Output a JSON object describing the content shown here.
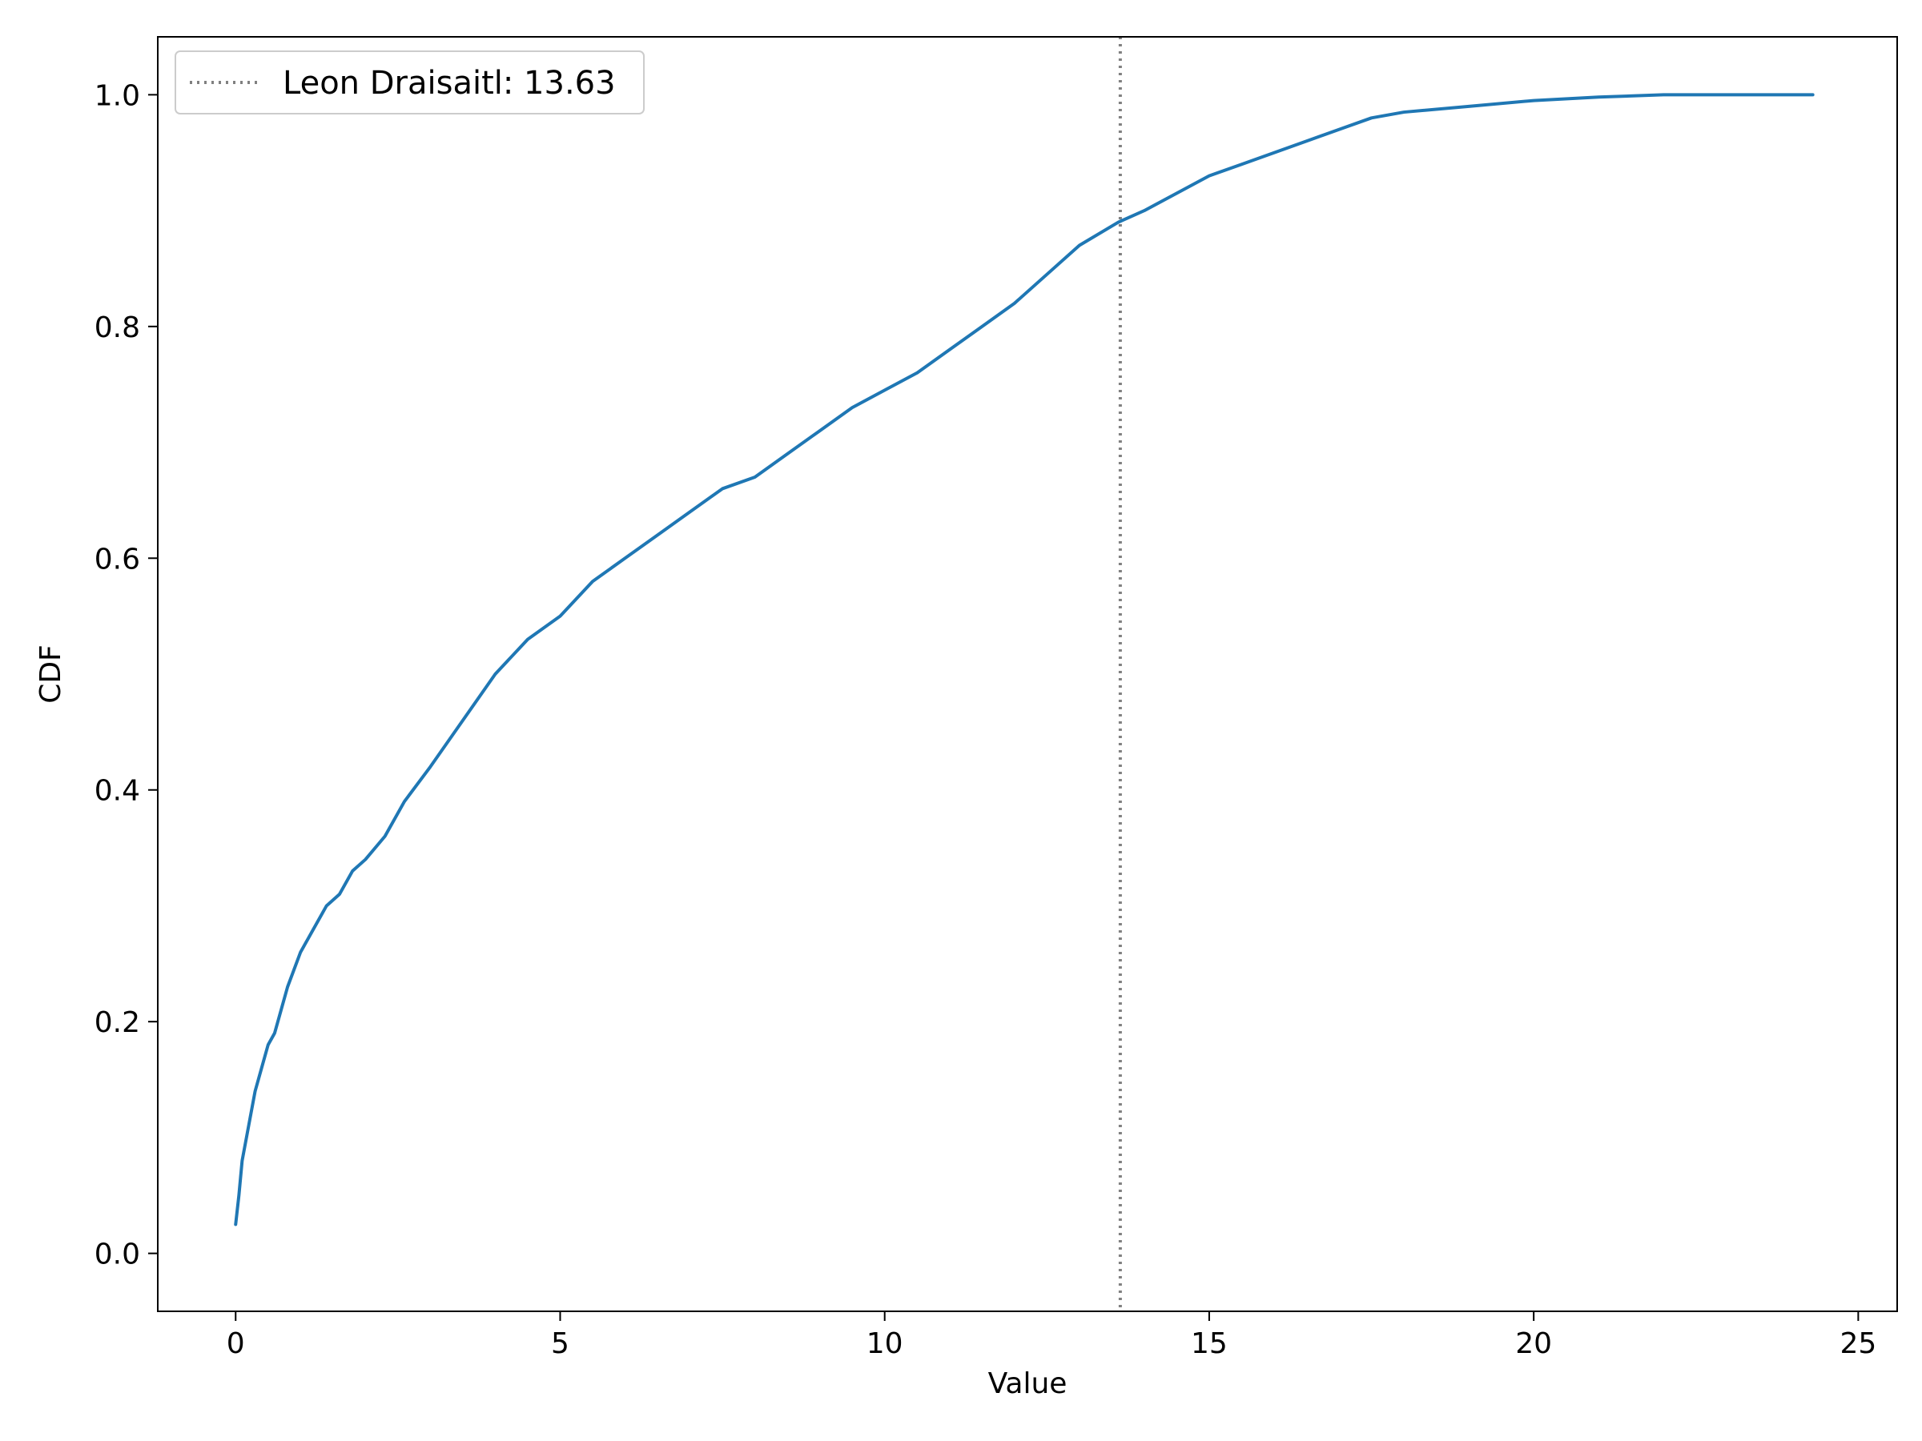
{
  "chart_data": {
    "type": "line",
    "title": "",
    "xlabel": "Value",
    "ylabel": "CDF",
    "xlim": [
      -1.2,
      25.6
    ],
    "ylim": [
      -0.05,
      1.05
    ],
    "xticks": [
      0,
      5,
      10,
      15,
      20,
      25
    ],
    "xtick_labels": [
      "0",
      "5",
      "10",
      "15",
      "20",
      "25"
    ],
    "yticks": [
      0.0,
      0.2,
      0.4,
      0.6,
      0.8,
      1.0
    ],
    "ytick_labels": [
      "0.0",
      "0.2",
      "0.4",
      "0.6",
      "0.8",
      "1.0"
    ],
    "grid": false,
    "legend_position": "top-left",
    "series": [
      {
        "color": "#1f77b4",
        "x": [
          0.0,
          0.05,
          0.1,
          0.2,
          0.3,
          0.4,
          0.5,
          0.6,
          0.7,
          0.8,
          1.0,
          1.2,
          1.4,
          1.6,
          1.8,
          2.0,
          2.3,
          2.6,
          3.0,
          3.5,
          4.0,
          4.5,
          5.0,
          5.5,
          6.0,
          6.5,
          7.0,
          7.5,
          8.0,
          8.5,
          9.0,
          9.5,
          10.0,
          10.5,
          11.0,
          11.5,
          12.0,
          12.5,
          13.0,
          13.6,
          14.0,
          14.5,
          15.0,
          15.5,
          16.0,
          16.5,
          17.0,
          17.5,
          18.0,
          19.0,
          20.0,
          21.0,
          22.0,
          23.0,
          24.3
        ],
        "y": [
          0.025,
          0.05,
          0.08,
          0.11,
          0.14,
          0.16,
          0.18,
          0.19,
          0.21,
          0.23,
          0.26,
          0.28,
          0.3,
          0.31,
          0.33,
          0.34,
          0.36,
          0.39,
          0.42,
          0.46,
          0.5,
          0.53,
          0.55,
          0.58,
          0.6,
          0.62,
          0.64,
          0.66,
          0.67,
          0.69,
          0.71,
          0.73,
          0.745,
          0.76,
          0.78,
          0.8,
          0.82,
          0.845,
          0.87,
          0.89,
          0.9,
          0.915,
          0.93,
          0.94,
          0.95,
          0.96,
          0.97,
          0.98,
          0.985,
          0.99,
          0.995,
          0.998,
          1.0,
          1.0,
          1.0
        ]
      }
    ],
    "reference_line": {
      "x": 13.63,
      "label": "Leon Draisaitl: 13.63",
      "color": "#808080",
      "style": "dotted"
    }
  }
}
